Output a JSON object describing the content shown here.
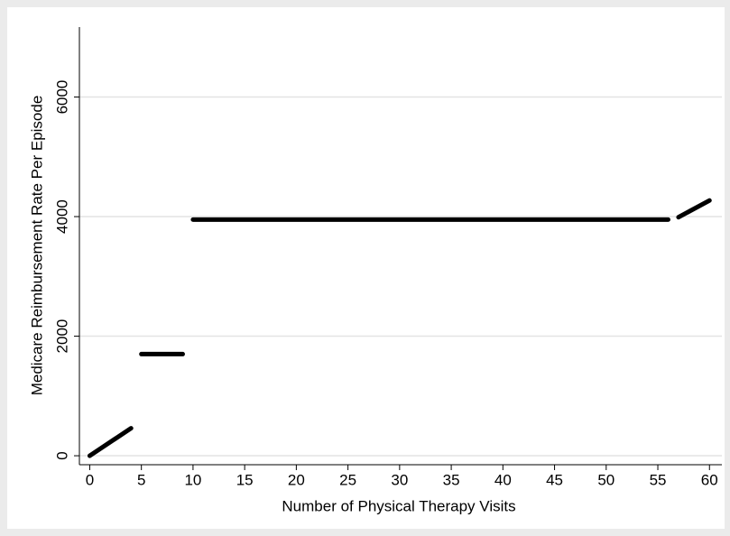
{
  "chart_data": {
    "type": "line",
    "x_label": "Number of Physical Therapy Visits",
    "y_label": "Medicare Reimbursement Rate Per Episode",
    "x": [
      0,
      4,
      null,
      5,
      9,
      null,
      10,
      56,
      null,
      57,
      60
    ],
    "values": [
      0,
      460,
      null,
      1700,
      1700,
      null,
      3950,
      3950,
      null,
      3990,
      4270
    ],
    "color": "#000000",
    "xlim": [
      -1,
      61.2
    ],
    "xticks": [
      0,
      5,
      10,
      15,
      20,
      25,
      30,
      35,
      40,
      45,
      50,
      55,
      60
    ],
    "ylim": [
      -150,
      7170
    ],
    "yticks": [
      0,
      2000,
      4000,
      6000
    ],
    "grid": true
  }
}
